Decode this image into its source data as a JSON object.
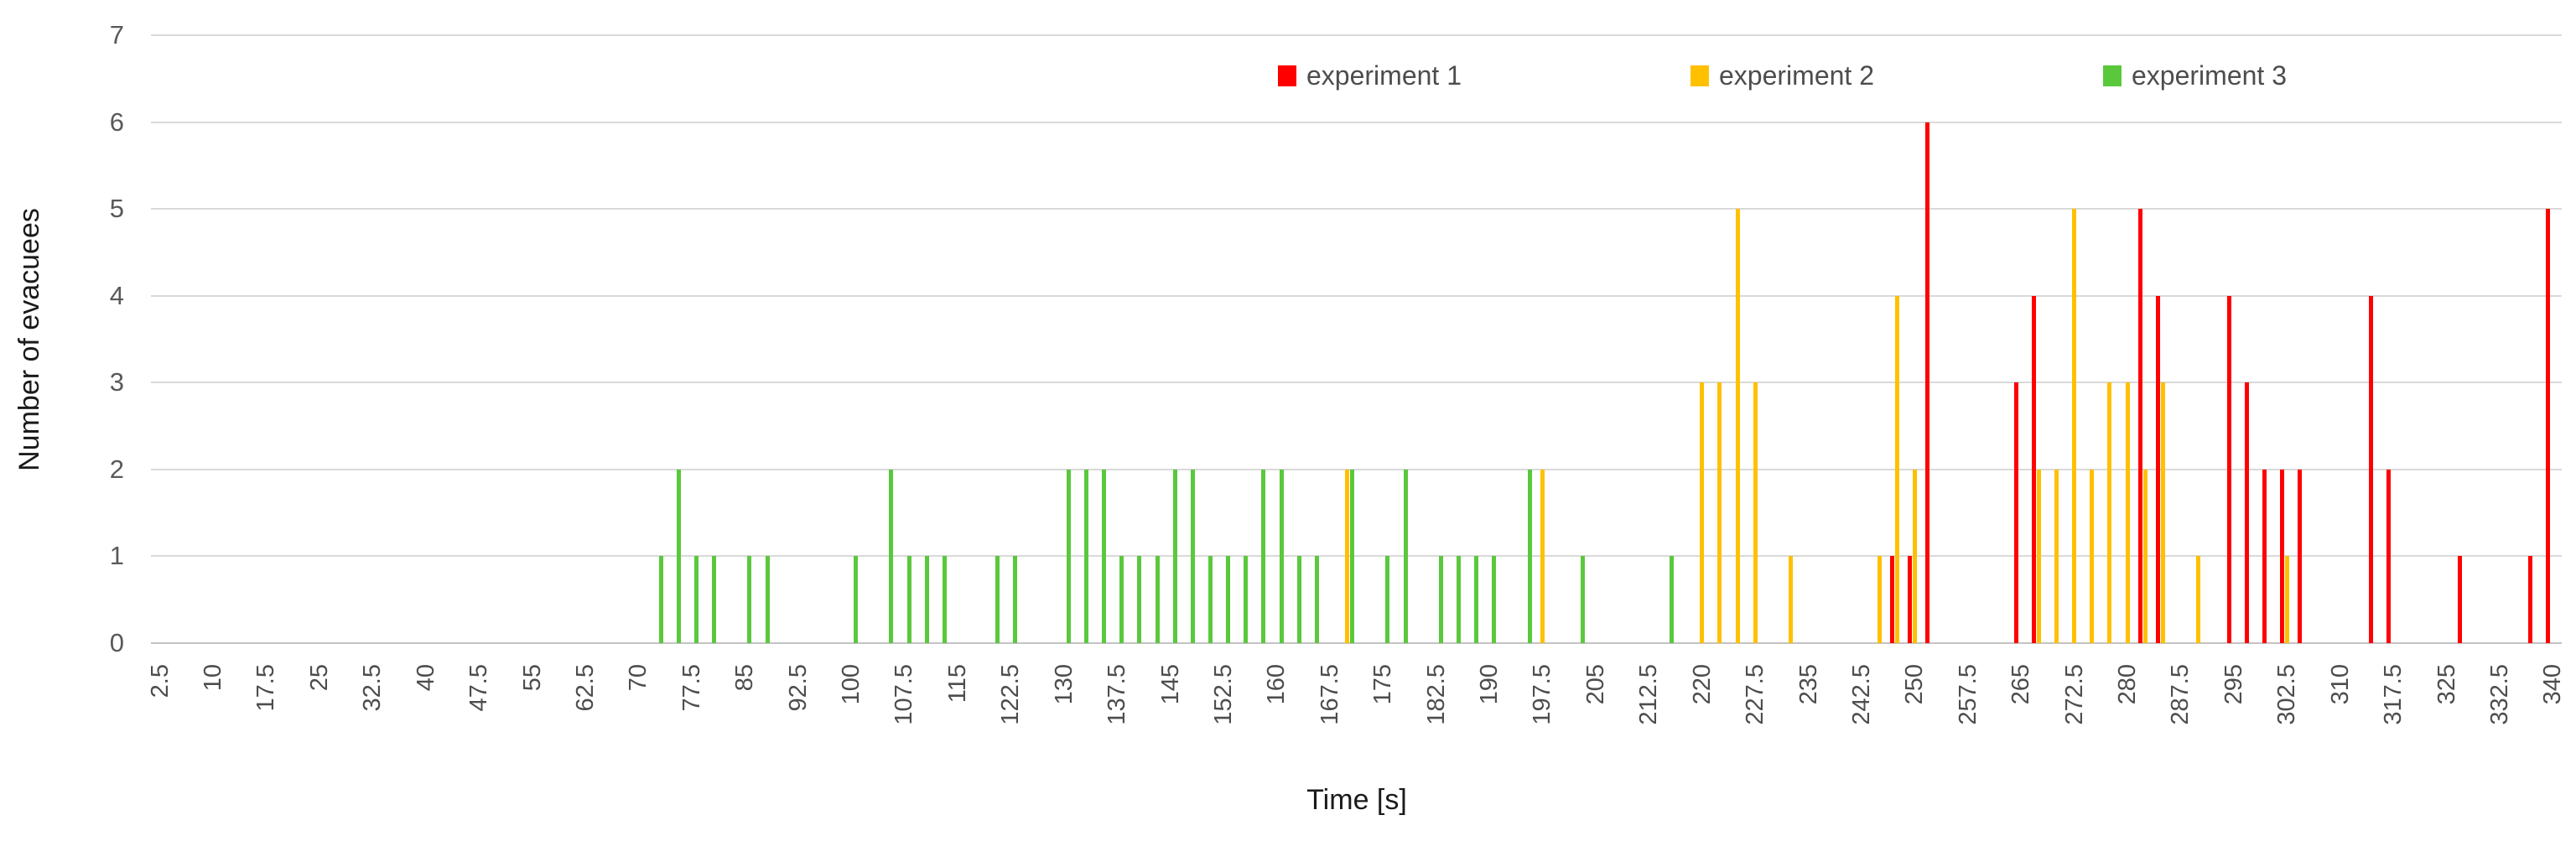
{
  "chart_data": {
    "type": "bar",
    "title": "",
    "xlabel": "Time [s]",
    "ylabel": "Number of evacuees",
    "x_bin_width": 2.5,
    "x_min": 2.5,
    "x_max": 340,
    "x_tick_step": 7.5,
    "x_tick_labels": [
      "2.5",
      "10",
      "17.5",
      "25",
      "32.5",
      "40",
      "47.5",
      "55",
      "62.5",
      "70",
      "77.5",
      "85",
      "92.5",
      "100",
      "107.5",
      "115",
      "122.5",
      "130",
      "137.5",
      "145",
      "152.5",
      "160",
      "167.5",
      "175",
      "182.5",
      "190",
      "197.5",
      "205",
      "212.5",
      "220",
      "227.5",
      "235",
      "242.5",
      "250",
      "257.5",
      "265",
      "272.5",
      "280",
      "287.5",
      "295",
      "302.5",
      "310",
      "317.5",
      "325",
      "332.5",
      "340"
    ],
    "y_tick_labels": [
      "0",
      "1",
      "2",
      "3",
      "4",
      "5",
      "6",
      "7"
    ],
    "ylim": [
      0,
      7
    ],
    "grid": true,
    "legend_position": "top-inside-right",
    "series": [
      {
        "name": "experiment 1",
        "color": "#FF0000",
        "points": [
          [
            247.5,
            1
          ],
          [
            250,
            1
          ],
          [
            252.5,
            6
          ],
          [
            265,
            3
          ],
          [
            267.5,
            4
          ],
          [
            282.5,
            5
          ],
          [
            285,
            4
          ],
          [
            295,
            4
          ],
          [
            297.5,
            3
          ],
          [
            300,
            2
          ],
          [
            302.5,
            2
          ],
          [
            305,
            2
          ],
          [
            315,
            4
          ],
          [
            317.5,
            2
          ],
          [
            327.5,
            1
          ],
          [
            337.5,
            1
          ],
          [
            340,
            5
          ]
        ]
      },
      {
        "name": "experiment 2",
        "color": "#FFC000",
        "points": [
          [
            170,
            2
          ],
          [
            197.5,
            2
          ],
          [
            220,
            3
          ],
          [
            222.5,
            3
          ],
          [
            225,
            5
          ],
          [
            227.5,
            3
          ],
          [
            232.5,
            1
          ],
          [
            245,
            1
          ],
          [
            247.5,
            4
          ],
          [
            250,
            2
          ],
          [
            267.5,
            2
          ],
          [
            270,
            2
          ],
          [
            272.5,
            5
          ],
          [
            275,
            2
          ],
          [
            277.5,
            3
          ],
          [
            280,
            3
          ],
          [
            282.5,
            2
          ],
          [
            285,
            3
          ],
          [
            290,
            1
          ],
          [
            302.5,
            1
          ]
        ]
      },
      {
        "name": "experiment 3",
        "color": "#5AC83C",
        "points": [
          [
            72.5,
            1
          ],
          [
            75,
            2
          ],
          [
            77.5,
            1
          ],
          [
            80,
            1
          ],
          [
            85,
            1
          ],
          [
            87.5,
            1
          ],
          [
            100,
            1
          ],
          [
            105,
            2
          ],
          [
            107.5,
            1
          ],
          [
            110,
            1
          ],
          [
            112.5,
            1
          ],
          [
            120,
            1
          ],
          [
            122.5,
            1
          ],
          [
            130,
            2
          ],
          [
            132.5,
            2
          ],
          [
            135,
            2
          ],
          [
            137.5,
            1
          ],
          [
            140,
            1
          ],
          [
            142.5,
            1
          ],
          [
            145,
            2
          ],
          [
            147.5,
            2
          ],
          [
            150,
            1
          ],
          [
            152.5,
            1
          ],
          [
            155,
            1
          ],
          [
            157.5,
            2
          ],
          [
            160,
            2
          ],
          [
            162.5,
            1
          ],
          [
            165,
            1
          ],
          [
            170,
            2
          ],
          [
            175,
            1
          ],
          [
            177.5,
            2
          ],
          [
            182.5,
            1
          ],
          [
            185,
            1
          ],
          [
            187.5,
            1
          ],
          [
            190,
            1
          ],
          [
            195,
            2
          ],
          [
            202.5,
            1
          ],
          [
            215,
            1
          ]
        ]
      }
    ]
  },
  "colors": {
    "background": "#FFFFFF",
    "gridline": "#D9D9D9",
    "baseline": "#C3C3C3",
    "tick_text": "#595959",
    "legend_text": "#4D4D4D"
  }
}
